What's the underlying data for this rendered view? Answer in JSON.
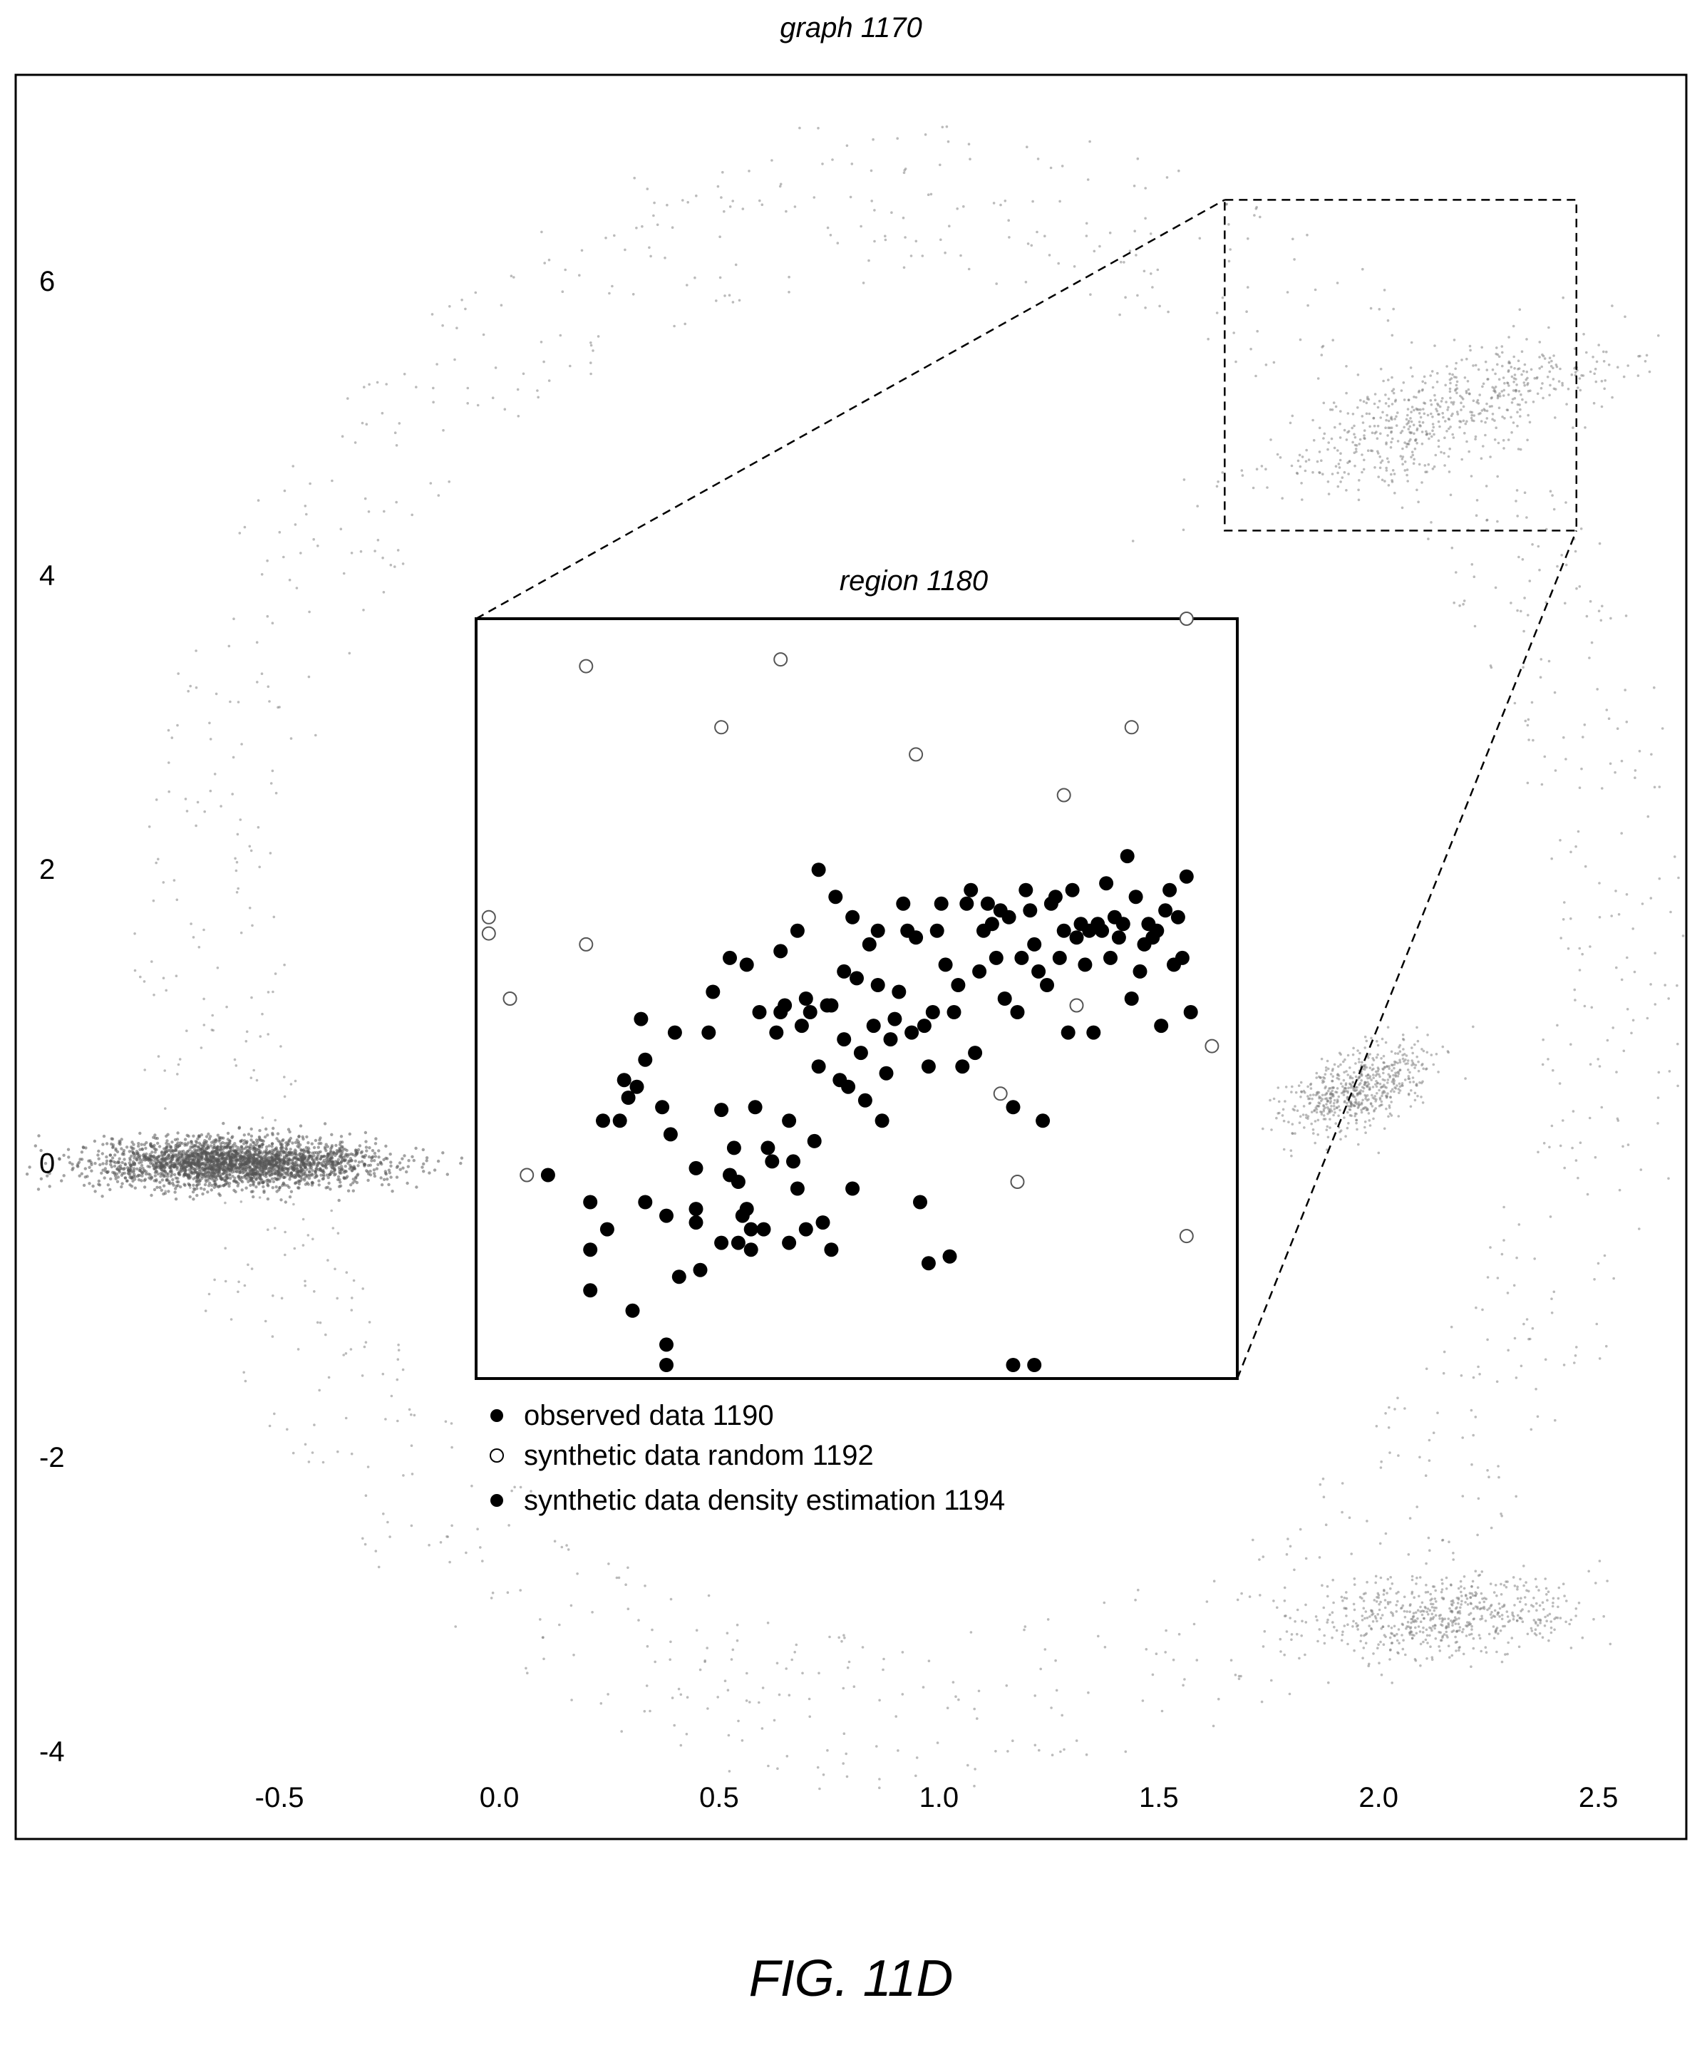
{
  "figure_label": "FIG. 11D",
  "chart_data": {
    "type": "scatter",
    "title": "graph 1170",
    "xlabel": "",
    "ylabel": "",
    "x_ticks": [
      "-0.5",
      "0.0",
      "0.5",
      "1.0",
      "1.5",
      "2.0",
      "2.5"
    ],
    "y_ticks": [
      "6",
      "4",
      "2",
      "0",
      "-2",
      "-4"
    ],
    "xlim": [
      -1.1,
      2.7
    ],
    "ylim": [
      -4.6,
      7.4
    ],
    "grid": false,
    "background_clusters": [
      {
        "name": "left-ellipse",
        "cx": -0.6,
        "cy": 0.0,
        "rx": 0.32,
        "ry": 0.16,
        "angle_deg": 0,
        "density": "dense"
      },
      {
        "name": "upper-right-cluster",
        "cx": 2.15,
        "cy": 5.1,
        "rx": 0.22,
        "ry": 0.6,
        "angle_deg": -35,
        "density": "medium"
      },
      {
        "name": "mid-right-cluster",
        "cx": 1.95,
        "cy": 0.5,
        "rx": 0.13,
        "ry": 0.32,
        "angle_deg": -20,
        "density": "medium"
      },
      {
        "name": "lower-right-cluster",
        "cx": 2.15,
        "cy": -3.1,
        "rx": 0.33,
        "ry": 0.28,
        "angle_deg": 35,
        "density": "medium"
      },
      {
        "name": "outer-ring",
        "cx": 0.95,
        "cy": 1.4,
        "rx": 1.75,
        "ry": 5.6,
        "angle_deg": 0,
        "density": "sparse"
      }
    ],
    "zoom_box": {
      "x0": 1.65,
      "x1": 2.45,
      "y0": 4.3,
      "y1": 6.55
    },
    "inset": {
      "title": "region 1180",
      "xlim": [
        0.0,
        1.8
      ],
      "ylim": [
        -2.0,
        3.6
      ],
      "series": [
        {
          "name": "observed data 1190",
          "marker": "filled",
          "points": [
            [
              0.17,
              -0.5
            ],
            [
              0.27,
              -0.7
            ],
            [
              0.27,
              -1.05
            ],
            [
              0.27,
              -1.35
            ],
            [
              0.34,
              -0.1
            ],
            [
              0.36,
              0.07
            ],
            [
              0.38,
              0.15
            ],
            [
              0.4,
              0.35
            ],
            [
              0.4,
              -0.7
            ],
            [
              0.44,
              0.0
            ],
            [
              0.45,
              -0.8
            ],
            [
              0.45,
              -1.75
            ],
            [
              0.45,
              -1.9
            ],
            [
              0.47,
              0.55
            ],
            [
              0.48,
              -1.25
            ],
            [
              0.52,
              -0.75
            ],
            [
              0.52,
              -0.85
            ],
            [
              0.53,
              -1.2
            ],
            [
              0.55,
              0.55
            ],
            [
              0.56,
              0.85
            ],
            [
              0.58,
              -0.02
            ],
            [
              0.6,
              -0.5
            ],
            [
              0.6,
              1.1
            ],
            [
              0.61,
              -0.3
            ],
            [
              0.62,
              -1.0
            ],
            [
              0.63,
              -0.8
            ],
            [
              0.64,
              1.05
            ],
            [
              0.64,
              -0.75
            ],
            [
              0.65,
              -1.05
            ],
            [
              0.65,
              -0.9
            ],
            [
              0.66,
              0.0
            ],
            [
              0.67,
              0.7
            ],
            [
              0.68,
              -0.9
            ],
            [
              0.69,
              -0.3
            ],
            [
              0.7,
              -0.4
            ],
            [
              0.71,
              0.55
            ],
            [
              0.72,
              1.15
            ],
            [
              0.72,
              0.7
            ],
            [
              0.73,
              0.75
            ],
            [
              0.74,
              -0.1
            ],
            [
              0.74,
              -1.0
            ],
            [
              0.75,
              -0.4
            ],
            [
              0.76,
              1.3
            ],
            [
              0.76,
              -0.6
            ],
            [
              0.77,
              0.6
            ],
            [
              0.78,
              0.8
            ],
            [
              0.78,
              -0.9
            ],
            [
              0.79,
              0.7
            ],
            [
              0.8,
              -0.25
            ],
            [
              0.81,
              1.75
            ],
            [
              0.81,
              0.3
            ],
            [
              0.82,
              -0.85
            ],
            [
              0.83,
              0.75
            ],
            [
              0.84,
              0.75
            ],
            [
              0.84,
              -1.05
            ],
            [
              0.85,
              1.55
            ],
            [
              0.86,
              0.2
            ],
            [
              0.87,
              0.5
            ],
            [
              0.87,
              1.0
            ],
            [
              0.88,
              0.15
            ],
            [
              0.89,
              1.4
            ],
            [
              0.89,
              -0.6
            ],
            [
              0.9,
              0.95
            ],
            [
              0.91,
              0.4
            ],
            [
              0.92,
              0.05
            ],
            [
              0.93,
              1.2
            ],
            [
              0.94,
              0.6
            ],
            [
              0.95,
              1.3
            ],
            [
              0.95,
              0.9
            ],
            [
              0.96,
              -0.1
            ],
            [
              0.97,
              0.25
            ],
            [
              0.98,
              0.5
            ],
            [
              0.99,
              0.65
            ],
            [
              1.0,
              0.85
            ],
            [
              1.01,
              1.5
            ],
            [
              1.02,
              1.3
            ],
            [
              1.03,
              0.55
            ],
            [
              1.04,
              1.25
            ],
            [
              1.05,
              -0.7
            ],
            [
              1.06,
              0.6
            ],
            [
              1.07,
              0.3
            ],
            [
              1.07,
              -1.15
            ],
            [
              1.08,
              0.7
            ],
            [
              1.09,
              1.3
            ],
            [
              1.1,
              1.5
            ],
            [
              1.11,
              1.05
            ],
            [
              1.12,
              -1.1
            ],
            [
              1.13,
              0.7
            ],
            [
              1.14,
              0.9
            ],
            [
              1.15,
              0.3
            ],
            [
              1.16,
              1.5
            ],
            [
              1.17,
              1.6
            ],
            [
              1.18,
              0.4
            ],
            [
              1.19,
              1.0
            ],
            [
              1.2,
              1.3
            ],
            [
              1.21,
              1.5
            ],
            [
              1.22,
              1.35
            ],
            [
              1.23,
              1.1
            ],
            [
              1.24,
              1.45
            ],
            [
              1.25,
              0.8
            ],
            [
              1.26,
              1.4
            ],
            [
              1.27,
              0.0
            ],
            [
              1.28,
              0.7
            ],
            [
              1.29,
              1.1
            ],
            [
              1.3,
              1.6
            ],
            [
              1.31,
              1.45
            ],
            [
              1.32,
              1.2
            ],
            [
              1.33,
              1.0
            ],
            [
              1.34,
              -0.1
            ],
            [
              1.35,
              0.9
            ],
            [
              1.36,
              1.5
            ],
            [
              1.37,
              1.55
            ],
            [
              1.38,
              1.1
            ],
            [
              1.39,
              1.3
            ],
            [
              1.4,
              0.55
            ],
            [
              1.41,
              1.6
            ],
            [
              1.42,
              1.25
            ],
            [
              1.43,
              1.35
            ],
            [
              1.44,
              1.05
            ],
            [
              1.45,
              1.3
            ],
            [
              1.46,
              0.55
            ],
            [
              1.47,
              1.35
            ],
            [
              1.48,
              1.3
            ],
            [
              1.49,
              1.65
            ],
            [
              1.5,
              1.1
            ],
            [
              1.51,
              1.4
            ],
            [
              1.52,
              1.25
            ],
            [
              1.53,
              1.35
            ],
            [
              1.54,
              1.85
            ],
            [
              1.55,
              0.8
            ],
            [
              1.56,
              1.55
            ],
            [
              1.57,
              1.0
            ],
            [
              1.58,
              1.2
            ],
            [
              1.59,
              1.35
            ],
            [
              1.6,
              1.25
            ],
            [
              1.61,
              1.3
            ],
            [
              1.62,
              0.6
            ],
            [
              1.63,
              1.45
            ],
            [
              1.64,
              1.6
            ],
            [
              1.65,
              1.05
            ],
            [
              1.66,
              1.4
            ],
            [
              1.67,
              1.1
            ],
            [
              1.68,
              1.7
            ],
            [
              1.69,
              0.7
            ],
            [
              0.62,
              -0.55
            ],
            [
              0.58,
              -1.0
            ],
            [
              0.52,
              -0.45
            ],
            [
              0.46,
              -0.2
            ],
            [
              0.39,
              0.65
            ],
            [
              0.35,
              0.2
            ],
            [
              0.31,
              -0.9
            ],
            [
              0.3,
              -0.1
            ],
            [
              1.27,
              -1.9
            ],
            [
              1.32,
              -1.9
            ],
            [
              0.37,
              -1.5
            ]
          ]
        },
        {
          "name": "synthetic data random 1192",
          "marker": "hollow",
          "points": [
            [
              0.03,
              1.4
            ],
            [
              0.03,
              1.28
            ],
            [
              0.08,
              0.8
            ],
            [
              0.12,
              -0.5
            ],
            [
              0.26,
              1.2
            ],
            [
              0.26,
              3.25
            ],
            [
              0.58,
              2.8
            ],
            [
              0.72,
              3.3
            ],
            [
              1.04,
              2.6
            ],
            [
              1.24,
              0.1
            ],
            [
              1.28,
              -0.55
            ],
            [
              1.39,
              2.3
            ],
            [
              1.42,
              0.75
            ],
            [
              1.55,
              2.8
            ],
            [
              1.68,
              3.6
            ],
            [
              1.68,
              -0.95
            ],
            [
              1.74,
              0.45
            ]
          ]
        },
        {
          "name": "synthetic data density estimation 1194",
          "marker": "filled",
          "points": []
        }
      ]
    }
  }
}
